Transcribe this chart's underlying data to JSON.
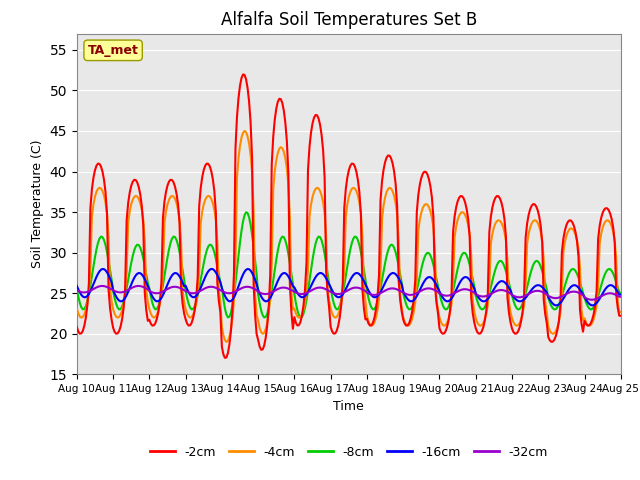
{
  "title": "Alfalfa Soil Temperatures Set B",
  "xlabel": "Time",
  "ylabel": "Soil Temperature (C)",
  "ylim": [
    15,
    57
  ],
  "xlim": [
    0,
    15
  ],
  "yticks": [
    15,
    20,
    25,
    30,
    35,
    40,
    45,
    50,
    55
  ],
  "xtick_labels": [
    "Aug 10",
    "Aug 11",
    "Aug 12",
    "Aug 13",
    "Aug 14",
    "Aug 15",
    "Aug 16",
    "Aug 17",
    "Aug 18",
    "Aug 19",
    "Aug 20",
    "Aug 21",
    "Aug 22",
    "Aug 23",
    "Aug 24",
    "Aug 25"
  ],
  "annotation": "TA_met",
  "annotation_color": "#8B0000",
  "annotation_bg": "#FFFF99",
  "colors": {
    "-2cm": "#FF0000",
    "-4cm": "#FF8C00",
    "-8cm": "#00CC00",
    "-16cm": "#0000FF",
    "-32cm": "#9900CC"
  },
  "linewidth": 1.5,
  "background_color": "#E8E8E8",
  "fig_bg": "#FFFFFF",
  "peaks_2cm": [
    41,
    39,
    39,
    41,
    52,
    49,
    47,
    41,
    42,
    40,
    37,
    37,
    36,
    34,
    35.5
  ],
  "troughs_2cm": [
    20,
    20,
    21,
    21,
    17,
    18,
    21,
    20,
    21,
    21,
    20,
    20,
    20,
    19,
    21
  ],
  "peaks_4cm": [
    38,
    37,
    37,
    37,
    45,
    43,
    38,
    38,
    38,
    36,
    35,
    34,
    34,
    33,
    34
  ],
  "troughs_4cm": [
    22,
    22,
    22,
    22,
    19,
    20,
    22,
    22,
    21,
    21,
    21,
    21,
    21,
    20,
    21
  ],
  "peaks_8cm": [
    32,
    31,
    32,
    31,
    35,
    32,
    32,
    32,
    31,
    30,
    30,
    29,
    29,
    28,
    28
  ],
  "troughs_8cm": [
    23,
    23,
    23,
    23,
    22,
    22,
    22,
    23,
    23,
    23,
    23,
    23,
    23,
    23,
    23
  ],
  "peaks_16cm": [
    28,
    27.5,
    27.5,
    28,
    28,
    27.5,
    27.5,
    27.5,
    27.5,
    27,
    27,
    26.5,
    26,
    26,
    26
  ],
  "troughs_16cm": [
    24.5,
    24,
    24,
    24.5,
    24,
    24,
    24.5,
    24.5,
    24.5,
    24,
    24,
    24,
    24,
    23.5,
    23.5
  ],
  "base_32cm": [
    25.5,
    25.5,
    25.4,
    25.4,
    25.4,
    25.3,
    25.3,
    25.3,
    25.2,
    25.2,
    25.1,
    25.0,
    24.9,
    24.8,
    24.6
  ]
}
